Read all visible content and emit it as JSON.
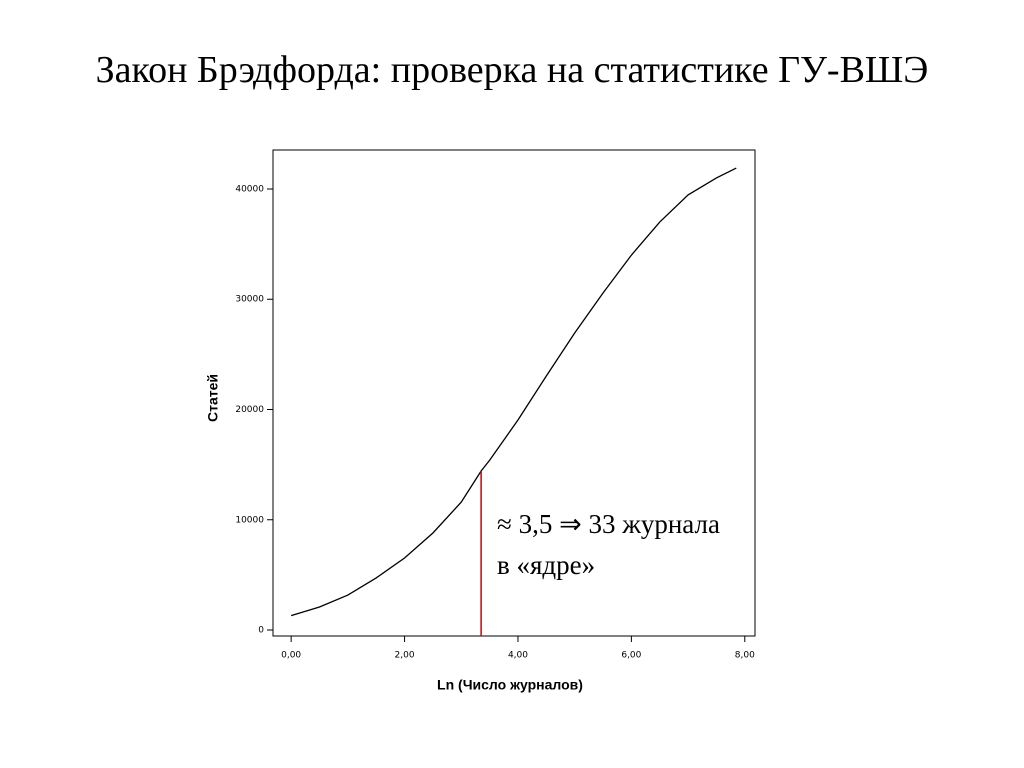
{
  "chart_data": {
    "type": "line",
    "title": "Закон Брэдфорда: проверка на статистике ГУ-ВШЭ",
    "x_label": "Ln (Число журналов)",
    "y_label": "Статей",
    "annotation": [
      "≈ 3,5  ⇒ 33 журнала",
      "в «ядре»"
    ],
    "x": [
      0,
      0.5,
      1,
      1.5,
      2,
      2.5,
      3,
      3.35,
      3.5,
      4,
      4.5,
      5,
      5.5,
      6,
      6.5,
      7,
      7.5,
      7.85
    ],
    "values": [
      1300,
      2090,
      3170,
      4720,
      6530,
      8800,
      11600,
      14420,
      15400,
      19050,
      23040,
      26940,
      30570,
      34000,
      37000,
      39460,
      41000,
      41900
    ],
    "color": "#000000",
    "cutoff": {
      "x": 3.35,
      "y": 14420,
      "color": "#d00000"
    },
    "xlim": [
      -0.32,
      8.18
    ],
    "ylim": [
      -544,
      43537
    ],
    "xticks": [
      {
        "value": 0,
        "label": "0,00"
      },
      {
        "value": 2,
        "label": "2,00"
      },
      {
        "value": 4,
        "label": "4,00"
      },
      {
        "value": 6,
        "label": "6,00"
      },
      {
        "value": 8,
        "label": "8,00"
      }
    ],
    "yticks": [
      0,
      10000,
      20000,
      30000,
      40000
    ]
  }
}
